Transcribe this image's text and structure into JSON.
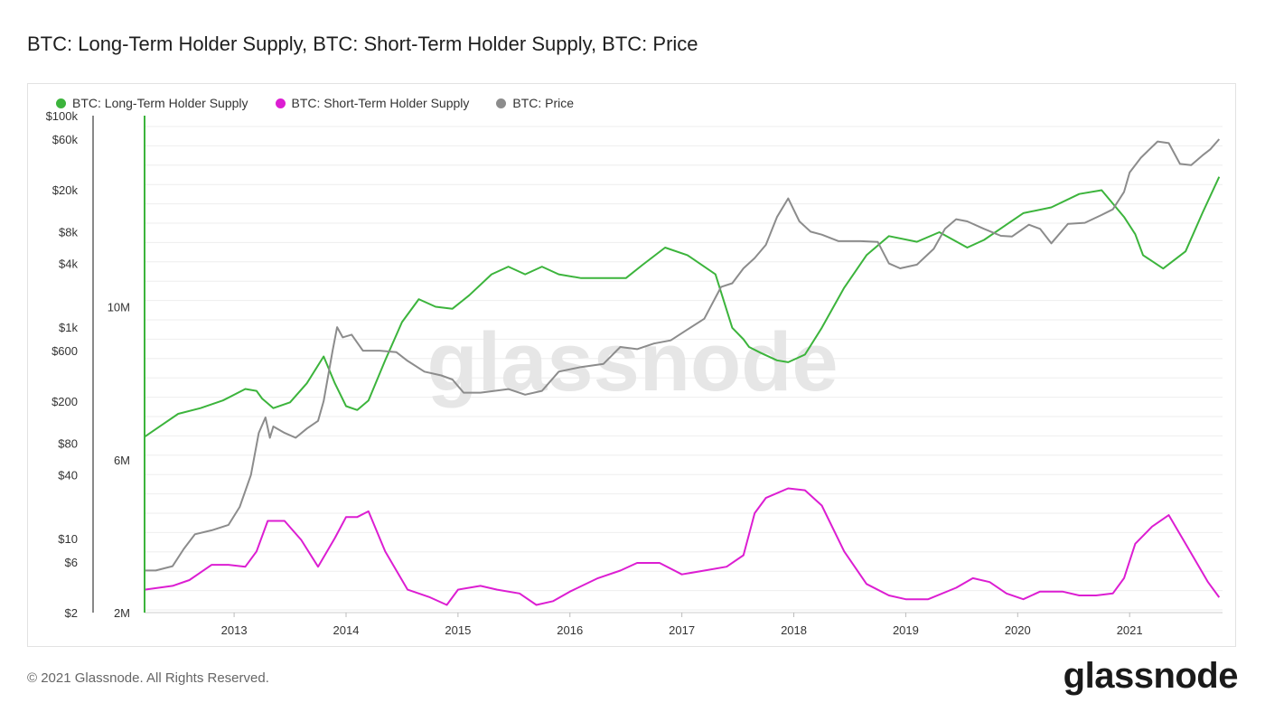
{
  "title": "BTC: Long-Term Holder Supply, BTC: Short-Term Holder Supply, BTC: Price",
  "footer": {
    "copyright": "© 2021 Glassnode. All Rights Reserved.",
    "brand": "glassnode"
  },
  "watermark": "glassnode",
  "colors": {
    "lth": "#3cb43c",
    "sth": "#dc1ed2",
    "price": "#8c8c8c",
    "grid": "#eeeeee",
    "axis": "#888888"
  },
  "legend": [
    {
      "label": "BTC: Long-Term Holder Supply",
      "color": "#3cb43c"
    },
    {
      "label": "BTC: Short-Term Holder Supply",
      "color": "#dc1ed2"
    },
    {
      "label": "BTC: Price",
      "color": "#8c8c8c"
    }
  ],
  "chart_data": {
    "type": "line",
    "title": "BTC: Long-Term Holder Supply, BTC: Short-Term Holder Supply, BTC: Price",
    "x_ticks": [
      "2013",
      "2014",
      "2015",
      "2016",
      "2017",
      "2018",
      "2019",
      "2020",
      "2021"
    ],
    "xlim": [
      2012.2,
      2021.83
    ],
    "price_axis": {
      "scale": "log",
      "ticks": [
        {
          "label": "$100k",
          "value": 100000
        },
        {
          "label": "$60k",
          "value": 60000
        },
        {
          "label": "$20k",
          "value": 20000
        },
        {
          "label": "$8k",
          "value": 8000
        },
        {
          "label": "$4k",
          "value": 4000
        },
        {
          "label": "$1k",
          "value": 1000
        },
        {
          "label": "$600",
          "value": 600
        },
        {
          "label": "$200",
          "value": 200
        },
        {
          "label": "$80",
          "value": 80
        },
        {
          "label": "$40",
          "value": 40
        },
        {
          "label": "$10",
          "value": 10
        },
        {
          "label": "$6",
          "value": 6
        },
        {
          "label": "$2",
          "value": 2
        }
      ],
      "ylim": [
        2,
        100000
      ]
    },
    "supply_axis": {
      "ticks": [
        {
          "label": "10M",
          "value": 10000000
        },
        {
          "label": "6M",
          "value": 6000000
        },
        {
          "label": "2M",
          "value": 2000000
        }
      ],
      "ylim": [
        2000000,
        15000000
      ]
    },
    "series": [
      {
        "name": "BTC: Long-Term Holder Supply",
        "axis": "supply",
        "color": "#3cb43c",
        "x": [
          2012.2,
          2012.35,
          2012.5,
          2012.7,
          2012.9,
          2013.1,
          2013.2,
          2013.25,
          2013.35,
          2013.5,
          2013.65,
          2013.8,
          2013.9,
          2014.0,
          2014.1,
          2014.2,
          2014.35,
          2014.5,
          2014.65,
          2014.8,
          2014.95,
          2015.1,
          2015.3,
          2015.45,
          2015.6,
          2015.75,
          2015.9,
          2016.1,
          2016.3,
          2016.5,
          2016.65,
          2016.85,
          2017.05,
          2017.3,
          2017.45,
          2017.55,
          2017.6,
          2017.7,
          2017.85,
          2017.95,
          2018.1,
          2018.25,
          2018.45,
          2018.65,
          2018.85,
          2019.1,
          2019.3,
          2019.55,
          2019.7,
          2019.9,
          2020.05,
          2020.3,
          2020.55,
          2020.75,
          2020.95,
          2021.05,
          2021.12,
          2021.3,
          2021.5,
          2021.65,
          2021.8
        ],
        "values": [
          6.6,
          6.9,
          7.2,
          7.35,
          7.55,
          7.85,
          7.8,
          7.6,
          7.35,
          7.5,
          8.0,
          8.7,
          8.0,
          7.4,
          7.3,
          7.55,
          8.6,
          9.6,
          10.2,
          10.0,
          9.95,
          10.3,
          10.85,
          11.05,
          10.85,
          11.05,
          10.85,
          10.75,
          10.75,
          10.75,
          11.1,
          11.55,
          11.35,
          10.85,
          9.45,
          9.15,
          8.95,
          8.8,
          8.6,
          8.55,
          8.75,
          9.45,
          10.5,
          11.35,
          11.85,
          11.7,
          11.95,
          11.55,
          11.75,
          12.15,
          12.45,
          12.6,
          12.95,
          13.05,
          12.35,
          11.9,
          11.35,
          11.0,
          11.45,
          12.45,
          13.4
        ]
      },
      {
        "name": "BTC: Short-Term Holder Supply",
        "axis": "supply",
        "color": "#dc1ed2",
        "x": [
          2012.2,
          2012.45,
          2012.6,
          2012.8,
          2012.95,
          2013.1,
          2013.2,
          2013.3,
          2013.45,
          2013.6,
          2013.75,
          2013.9,
          2014.0,
          2014.1,
          2014.2,
          2014.35,
          2014.55,
          2014.75,
          2014.9,
          2015.0,
          2015.2,
          2015.35,
          2015.55,
          2015.7,
          2015.85,
          2016.0,
          2016.25,
          2016.45,
          2016.6,
          2016.8,
          2017.0,
          2017.2,
          2017.4,
          2017.55,
          2017.65,
          2017.75,
          2017.95,
          2018.1,
          2018.25,
          2018.45,
          2018.65,
          2018.85,
          2019.0,
          2019.2,
          2019.45,
          2019.6,
          2019.75,
          2019.9,
          2020.05,
          2020.2,
          2020.4,
          2020.55,
          2020.7,
          2020.85,
          2020.95,
          2021.05,
          2021.2,
          2021.35,
          2021.5,
          2021.7,
          2021.8
        ],
        "values": [
          2.6,
          2.7,
          2.85,
          3.25,
          3.25,
          3.2,
          3.6,
          4.4,
          4.4,
          3.9,
          3.2,
          3.95,
          4.5,
          4.5,
          4.65,
          3.6,
          2.6,
          2.4,
          2.2,
          2.6,
          2.7,
          2.6,
          2.5,
          2.2,
          2.3,
          2.55,
          2.9,
          3.1,
          3.3,
          3.3,
          3.0,
          3.1,
          3.2,
          3.5,
          4.6,
          5.0,
          5.25,
          5.2,
          4.8,
          3.6,
          2.75,
          2.45,
          2.35,
          2.35,
          2.65,
          2.9,
          2.8,
          2.5,
          2.35,
          2.55,
          2.55,
          2.45,
          2.45,
          2.5,
          2.9,
          3.8,
          4.25,
          4.55,
          3.8,
          2.8,
          2.4
        ]
      },
      {
        "name": "BTC: Price",
        "axis": "price",
        "color": "#8c8c8c",
        "x": [
          2012.2,
          2012.3,
          2012.45,
          2012.55,
          2012.65,
          2012.8,
          2012.95,
          2013.05,
          2013.15,
          2013.22,
          2013.28,
          2013.32,
          2013.35,
          2013.45,
          2013.55,
          2013.65,
          2013.75,
          2013.8,
          2013.88,
          2013.92,
          2013.97,
          2014.05,
          2014.15,
          2014.3,
          2014.45,
          2014.55,
          2014.7,
          2014.85,
          2014.95,
          2015.05,
          2015.2,
          2015.45,
          2015.6,
          2015.75,
          2015.9,
          2016.1,
          2016.3,
          2016.45,
          2016.6,
          2016.75,
          2016.9,
          2017.05,
          2017.2,
          2017.35,
          2017.45,
          2017.55,
          2017.65,
          2017.75,
          2017.85,
          2017.95,
          2018.05,
          2018.15,
          2018.25,
          2018.4,
          2018.5,
          2018.6,
          2018.75,
          2018.85,
          2018.95,
          2019.1,
          2019.25,
          2019.35,
          2019.45,
          2019.55,
          2019.7,
          2019.85,
          2019.95,
          2020.1,
          2020.2,
          2020.3,
          2020.45,
          2020.6,
          2020.75,
          2020.85,
          2020.95,
          2021.0,
          2021.1,
          2021.25,
          2021.35,
          2021.45,
          2021.55,
          2021.65,
          2021.72,
          2021.8
        ],
        "values": [
          5,
          5,
          5.5,
          8,
          11,
          12,
          13.5,
          20,
          40,
          100,
          140,
          90,
          115,
          100,
          90,
          110,
          130,
          200,
          600,
          1000,
          800,
          850,
          600,
          600,
          580,
          480,
          380,
          350,
          320,
          240,
          240,
          260,
          230,
          250,
          380,
          420,
          450,
          650,
          620,
          700,
          750,
          950,
          1200,
          2400,
          2600,
          3600,
          4500,
          6000,
          11000,
          16500,
          10000,
          8000,
          7500,
          6500,
          6500,
          6500,
          6400,
          4000,
          3600,
          3900,
          5500,
          8500,
          10500,
          10000,
          8500,
          7300,
          7200,
          9300,
          8500,
          6200,
          9500,
          9700,
          11500,
          13000,
          19000,
          29000,
          40000,
          57000,
          55000,
          35000,
          34000,
          42000,
          48000,
          60000
        ]
      }
    ],
    "watermark": "glassnode"
  }
}
